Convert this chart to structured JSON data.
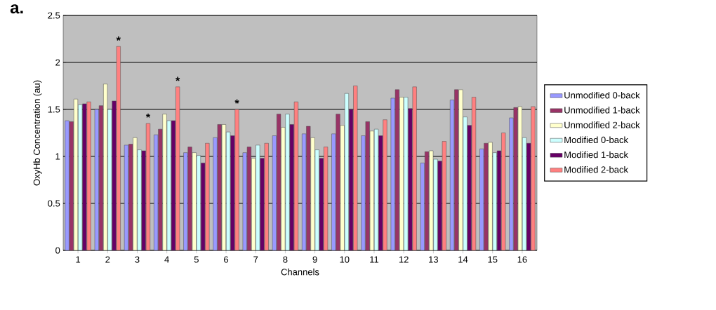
{
  "chart_data": {
    "type": "bar",
    "xlabel": "Channels",
    "ylabel": "OxyHb Concentration (au)",
    "categories": [
      "1",
      "2",
      "3",
      "4",
      "5",
      "6",
      "7",
      "8",
      "9",
      "10",
      "11",
      "12",
      "13",
      "14",
      "15",
      "16"
    ],
    "series": [
      {
        "name": "Unmodified 0-back",
        "color": "#9999ff",
        "values": [
          1.38,
          1.5,
          1.12,
          1.23,
          1.04,
          1.2,
          1.04,
          1.22,
          1.24,
          1.24,
          1.22,
          1.62,
          0.93,
          1.6,
          1.08,
          1.41
        ]
      },
      {
        "name": "Unmodified 1-back",
        "color": "#993366",
        "values": [
          1.37,
          1.54,
          1.13,
          1.29,
          1.1,
          1.34,
          1.1,
          1.45,
          1.32,
          1.45,
          1.37,
          1.71,
          1.05,
          1.71,
          1.14,
          1.52
        ]
      },
      {
        "name": "Unmodified 2-back",
        "color": "#ffffcc",
        "values": [
          1.61,
          1.77,
          1.2,
          1.45,
          1.04,
          1.34,
          0.98,
          1.31,
          1.2,
          1.33,
          1.27,
          1.63,
          1.06,
          1.71,
          1.15,
          1.53
        ]
      },
      {
        "name": "Modified 0-back",
        "color": "#ccffff",
        "values": [
          1.55,
          1.5,
          1.07,
          1.38,
          1.01,
          1.26,
          1.12,
          1.45,
          1.07,
          1.67,
          1.29,
          1.63,
          0.97,
          1.42,
          1.04,
          1.2
        ]
      },
      {
        "name": "Modified 1-back",
        "color": "#660066",
        "values": [
          1.56,
          1.59,
          1.06,
          1.38,
          0.93,
          1.22,
          0.98,
          1.34,
          0.98,
          1.5,
          1.22,
          1.51,
          0.95,
          1.33,
          1.06,
          1.14
        ]
      },
      {
        "name": "Modified 2-back",
        "color": "#ff8080",
        "values": [
          1.58,
          2.17,
          1.35,
          1.74,
          1.14,
          1.5,
          1.14,
          1.58,
          1.1,
          1.75,
          1.39,
          1.74,
          1.16,
          1.63,
          1.25,
          1.53
        ]
      }
    ],
    "ylim": [
      0,
      2.5
    ],
    "yticks": [
      0,
      0.5,
      1,
      1.5,
      2,
      2.5
    ],
    "grid": "y",
    "legend": "right",
    "annotations": [
      "a.",
      "*",
      "*",
      "*",
      "*"
    ]
  }
}
